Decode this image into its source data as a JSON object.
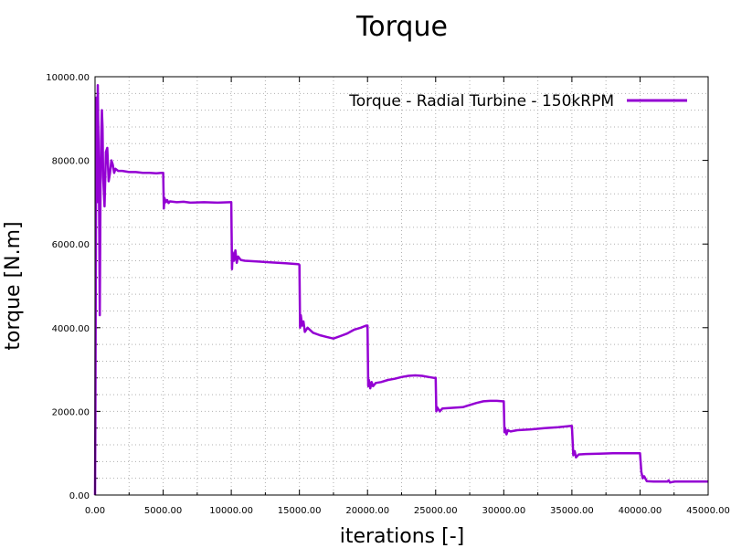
{
  "chart_data": {
    "type": "line",
    "title": "Torque",
    "xlabel": "iterations [-]",
    "ylabel": "torque [N.m]",
    "xlim": [
      0,
      45000
    ],
    "ylim": [
      0,
      10000
    ],
    "x_ticks": [
      0,
      5000,
      10000,
      15000,
      20000,
      25000,
      30000,
      35000,
      40000,
      45000
    ],
    "y_ticks": [
      0,
      2000,
      4000,
      6000,
      8000,
      10000
    ],
    "x_tick_labels": [
      "0.00",
      "5000.00",
      "10000.00",
      "15000.00",
      "20000.00",
      "25000.00",
      "30000.00",
      "35000.00",
      "40000.00",
      "45000.00"
    ],
    "y_tick_labels": [
      "0.00",
      "2000.00",
      "4000.00",
      "6000.00",
      "8000.00",
      "10000.00"
    ],
    "grid": true,
    "legend_position": "top-right",
    "series": [
      {
        "name": "Torque - Radial Turbine - 150kRPM",
        "color": "#9400d3",
        "x": [
          0,
          30,
          60,
          90,
          120,
          150,
          200,
          250,
          300,
          350,
          400,
          450,
          500,
          550,
          600,
          700,
          800,
          900,
          1000,
          1100,
          1200,
          1300,
          1400,
          1500,
          1700,
          2000,
          2500,
          3000,
          3500,
          4000,
          4500,
          4900,
          5000,
          5050,
          5100,
          5200,
          5300,
          5400,
          5500,
          6000,
          6500,
          7000,
          8000,
          9000,
          9900,
          10000,
          10050,
          10100,
          10200,
          10300,
          10400,
          10500,
          10700,
          11000,
          12000,
          13000,
          14000,
          14900,
          15000,
          15050,
          15100,
          15200,
          15300,
          15400,
          15600,
          16000,
          16500,
          17000,
          17500,
          18000,
          18500,
          19000,
          19500,
          19900,
          20000,
          20050,
          20100,
          20200,
          20300,
          20400,
          20600,
          21000,
          21500,
          22000,
          22500,
          23000,
          23500,
          24000,
          24500,
          24900,
          25000,
          25050,
          25100,
          25200,
          25300,
          25500,
          26000,
          27000,
          28000,
          28500,
          29000,
          29500,
          29900,
          30000,
          30050,
          30100,
          30200,
          30300,
          30500,
          31000,
          32000,
          33000,
          34000,
          34900,
          35000,
          35100,
          35200,
          35300,
          35500,
          36000,
          37000,
          38000,
          39000,
          39900,
          40000,
          40100,
          40200,
          40300,
          40500,
          41000,
          41500,
          42000,
          42100,
          42200,
          42500,
          43000,
          44000,
          45000
        ],
        "y": [
          0,
          2000,
          6000,
          9500,
          9000,
          7000,
          9800,
          8500,
          6800,
          4300,
          7400,
          8500,
          9200,
          8800,
          7600,
          6900,
          8200,
          8300,
          7500,
          7700,
          8000,
          7900,
          7700,
          7800,
          7750,
          7750,
          7720,
          7720,
          7700,
          7700,
          7690,
          7700,
          7700,
          6850,
          7100,
          7000,
          7050,
          6980,
          7020,
          7000,
          7010,
          6990,
          7000,
          6990,
          7000,
          7000,
          5400,
          5800,
          5600,
          5850,
          5550,
          5700,
          5620,
          5600,
          5580,
          5560,
          5540,
          5520,
          5500,
          4000,
          4300,
          4050,
          4150,
          3900,
          4000,
          3880,
          3820,
          3780,
          3740,
          3800,
          3860,
          3950,
          4000,
          4050,
          4050,
          2600,
          2750,
          2550,
          2700,
          2600,
          2680,
          2700,
          2750,
          2780,
          2820,
          2850,
          2860,
          2850,
          2820,
          2800,
          2800,
          2000,
          2100,
          2050,
          2000,
          2070,
          2080,
          2100,
          2200,
          2240,
          2250,
          2250,
          2240,
          2240,
          1500,
          1600,
          1450,
          1550,
          1520,
          1550,
          1570,
          1600,
          1620,
          1650,
          1650,
          950,
          1050,
          900,
          970,
          980,
          990,
          1000,
          1000,
          1000,
          1000,
          550,
          400,
          450,
          330,
          320,
          320,
          320,
          350,
          300,
          320,
          320,
          320,
          320
        ]
      }
    ]
  }
}
